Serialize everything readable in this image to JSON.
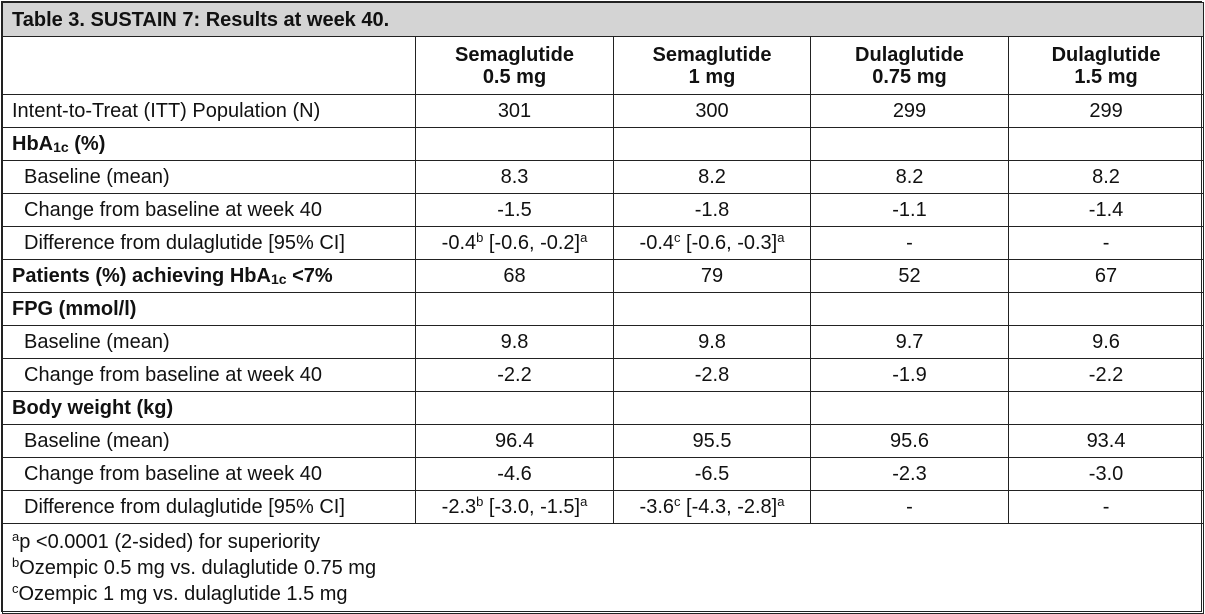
{
  "title": "Table 3. SUSTAIN 7: Results at week 40.",
  "columns": [
    {
      "line1": "Semaglutide",
      "line2": "0.5 mg"
    },
    {
      "line1": "Semaglutide",
      "line2": "1 mg"
    },
    {
      "line1": "Dulaglutide",
      "line2": "0.75 mg"
    },
    {
      "line1": "Dulaglutide",
      "line2": "1.5 mg"
    }
  ],
  "rows": [
    {
      "label": "Intent-to-Treat (ITT) Population (N)",
      "style": "normal",
      "values": [
        "301",
        "300",
        "299",
        "299"
      ]
    },
    {
      "label": "HbA",
      "label_sub": "1c",
      "label_after": " (%)",
      "style": "bold",
      "values": [
        "",
        "",
        "",
        ""
      ]
    },
    {
      "label": "Baseline (mean)",
      "style": "indent",
      "values": [
        "8.3",
        "8.2",
        "8.2",
        "8.2"
      ]
    },
    {
      "label": "Change from baseline at week 40",
      "style": "indent",
      "values": [
        "-1.5",
        "-1.8",
        "-1.1",
        "-1.4"
      ]
    },
    {
      "label": "Difference from dulaglutide [95% CI]",
      "style": "indent",
      "values": [
        {
          "v": "-0.4",
          "sup1": "b",
          "ci": " [-0.6, -0.2]",
          "sup2": "a"
        },
        {
          "v": "-0.4",
          "sup1": "c",
          "ci": " [-0.6, -0.3]",
          "sup2": "a"
        },
        "-",
        "-"
      ]
    },
    {
      "label": "Patients (%) achieving HbA",
      "label_sub": "1c",
      "label_after": " <7%",
      "style": "bold",
      "values": [
        "68",
        "79",
        "52",
        "67"
      ]
    },
    {
      "label": "FPG (mmol/l)",
      "style": "bold",
      "values": [
        "",
        "",
        "",
        ""
      ]
    },
    {
      "label": "Baseline (mean)",
      "style": "indent",
      "values": [
        "9.8",
        "9.8",
        "9.7",
        "9.6"
      ]
    },
    {
      "label": "Change from baseline at week 40",
      "style": "indent",
      "values": [
        "-2.2",
        "-2.8",
        "-1.9",
        "-2.2"
      ]
    },
    {
      "label": "Body weight (kg)",
      "style": "bold",
      "values": [
        "",
        "",
        "",
        ""
      ]
    },
    {
      "label": "Baseline (mean)",
      "style": "indent",
      "values": [
        "96.4",
        "95.5",
        "95.6",
        "93.4"
      ]
    },
    {
      "label": "Change from baseline at week 40",
      "style": "indent",
      "values": [
        "-4.6",
        "-6.5",
        "-2.3",
        "-3.0"
      ]
    },
    {
      "label": "Difference from dulaglutide [95% CI]",
      "style": "indent",
      "values": [
        {
          "v": "-2.3",
          "sup1": "b",
          "ci": " [-3.0, -1.5]",
          "sup2": "a"
        },
        {
          "v": "-3.6",
          "sup1": "c",
          "ci": " [-4.3, -2.8]",
          "sup2": "a"
        },
        "-",
        "-"
      ]
    }
  ],
  "footnotes": [
    {
      "mark": "a",
      "text": "p <0.0001 (2-sided) for superiority"
    },
    {
      "mark": "b",
      "text": "Ozempic 0.5 mg vs. dulaglutide 0.75 mg"
    },
    {
      "mark": "c",
      "text": "Ozempic 1 mg vs. dulaglutide 1.5 mg"
    }
  ]
}
